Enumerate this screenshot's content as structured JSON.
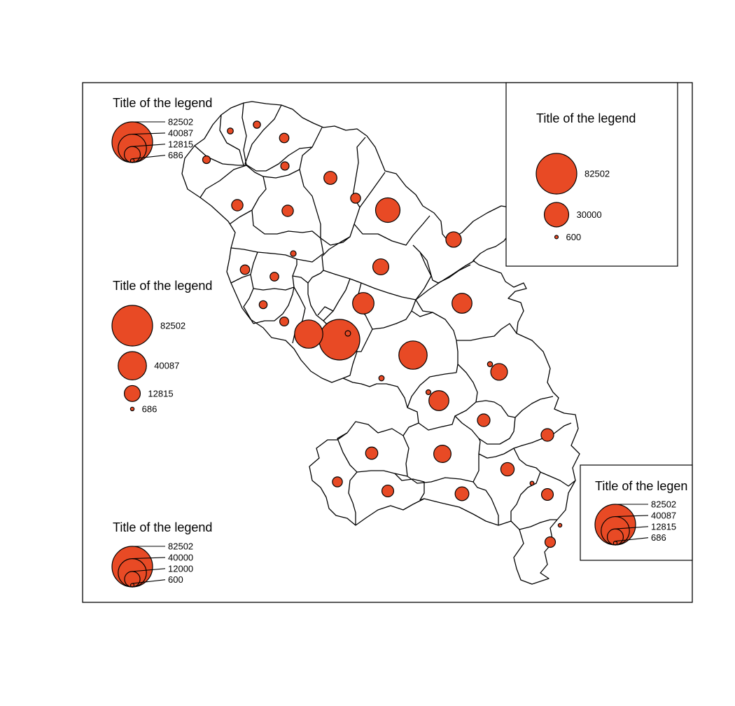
{
  "map": {
    "fill_color": "#e84a25",
    "max_value": 82502,
    "symbols": [
      {
        "value": 82502
      },
      {
        "value": 40087
      },
      {
        "value": 40087
      },
      {
        "value": 30000
      },
      {
        "value": 23000
      },
      {
        "value": 20000
      },
      {
        "value": 20000
      },
      {
        "value": 15000
      },
      {
        "value": 14000
      },
      {
        "value": 12815
      },
      {
        "value": 12000
      },
      {
        "value": 9500
      },
      {
        "value": 9000
      },
      {
        "value": 8500
      },
      {
        "value": 8000
      },
      {
        "value": 8000
      },
      {
        "value": 7500
      },
      {
        "value": 7000
      },
      {
        "value": 7000
      },
      {
        "value": 6500
      },
      {
        "value": 6500
      },
      {
        "value": 5500
      },
      {
        "value": 5000
      },
      {
        "value": 5000
      },
      {
        "value": 4500
      },
      {
        "value": 4500
      },
      {
        "value": 4000
      },
      {
        "value": 3800
      },
      {
        "value": 3500
      },
      {
        "value": 3200
      },
      {
        "value": 3000
      },
      {
        "value": 2600
      },
      {
        "value": 1800
      },
      {
        "value": 1600
      },
      {
        "value": 1500
      },
      {
        "value": 1400
      },
      {
        "value": 1300
      },
      {
        "value": 1200
      },
      {
        "value": 800
      },
      {
        "value": 686
      }
    ]
  },
  "legends": [
    {
      "id": "top-left",
      "title": "Title of the legend",
      "style": "nested",
      "frame": false,
      "values": [
        "82502",
        "40087",
        "12815",
        "686"
      ]
    },
    {
      "id": "middle-left",
      "title": "Title of the legend",
      "style": "stacked",
      "frame": false,
      "values": [
        "82502",
        "40087",
        "12815",
        "686"
      ]
    },
    {
      "id": "bottom-left",
      "title": "Title of the legend",
      "style": "nested",
      "frame": false,
      "values": [
        "82502",
        "40000",
        "12000",
        "600"
      ]
    },
    {
      "id": "top-right",
      "title": "Title of the legend",
      "style": "stacked",
      "frame": true,
      "values": [
        "82502",
        "30000",
        "600"
      ]
    },
    {
      "id": "bottom-right",
      "title": "Title of the legen",
      "style": "nested",
      "frame": true,
      "values": [
        "82502",
        "40087",
        "12815",
        "686"
      ]
    }
  ]
}
